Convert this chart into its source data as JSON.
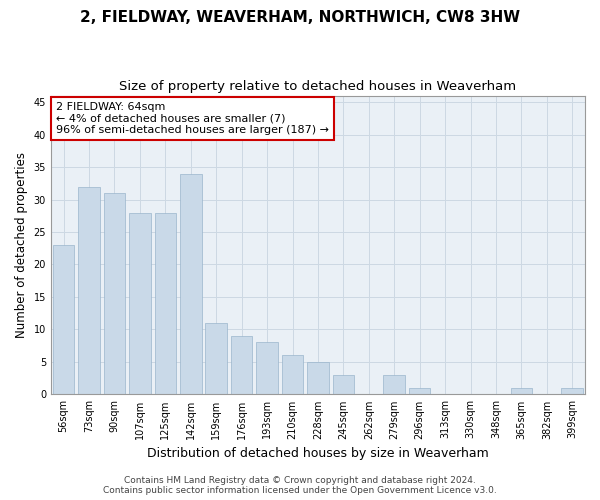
{
  "title": "2, FIELDWAY, WEAVERHAM, NORTHWICH, CW8 3HW",
  "subtitle": "Size of property relative to detached houses in Weaverham",
  "xlabel": "Distribution of detached houses by size in Weaverham",
  "ylabel": "Number of detached properties",
  "categories": [
    "56sqm",
    "73sqm",
    "90sqm",
    "107sqm",
    "125sqm",
    "142sqm",
    "159sqm",
    "176sqm",
    "193sqm",
    "210sqm",
    "228sqm",
    "245sqm",
    "262sqm",
    "279sqm",
    "296sqm",
    "313sqm",
    "330sqm",
    "348sqm",
    "365sqm",
    "382sqm",
    "399sqm"
  ],
  "values": [
    23,
    32,
    31,
    28,
    28,
    34,
    11,
    9,
    8,
    6,
    5,
    3,
    0,
    3,
    1,
    0,
    0,
    0,
    1,
    0,
    1
  ],
  "bar_color": "#c9d9e8",
  "bar_edge_color": "#9ab5cc",
  "annotation_box_text": "2 FIELDWAY: 64sqm\n← 4% of detached houses are smaller (7)\n96% of semi-detached houses are larger (187) →",
  "annotation_box_color": "#ffffff",
  "annotation_box_edge_color": "#cc0000",
  "grid_color": "#cdd8e3",
  "background_color": "#eaf0f6",
  "ylim": [
    0,
    46
  ],
  "yticks": [
    0,
    5,
    10,
    15,
    20,
    25,
    30,
    35,
    40,
    45
  ],
  "footer_text": "Contains HM Land Registry data © Crown copyright and database right 2024.\nContains public sector information licensed under the Open Government Licence v3.0.",
  "title_fontsize": 11,
  "subtitle_fontsize": 9.5,
  "xlabel_fontsize": 9,
  "ylabel_fontsize": 8.5,
  "tick_fontsize": 7,
  "annotation_fontsize": 8,
  "footer_fontsize": 6.5
}
